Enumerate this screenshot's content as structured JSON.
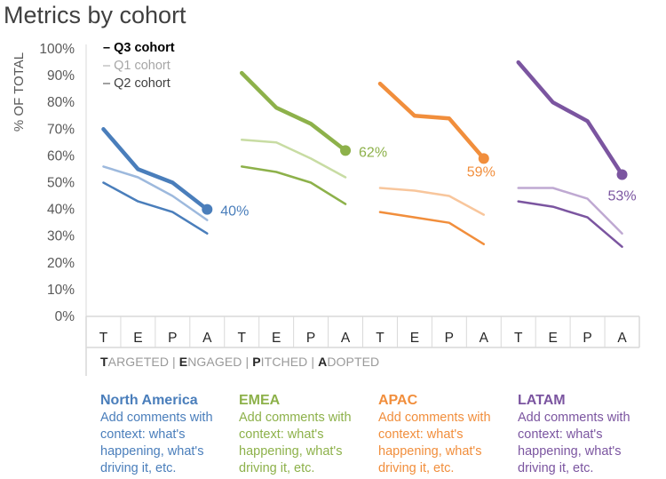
{
  "title": "Metrics by cohort",
  "legend": {
    "q3": "– Q3 cohort",
    "q1": "– Q1 cohort",
    "q2": "– Q2 cohort"
  },
  "key": {
    "t_first": "T",
    "t_rest": "ARGETED",
    "sep1": " | ",
    "e_first": "E",
    "e_rest": "NGAGED",
    "sep2": " | ",
    "p_first": "P",
    "p_rest": "ITCHED",
    "sep3": " | ",
    "a_first": "A",
    "a_rest": "DOPTED"
  },
  "regions": [
    {
      "name": "North America",
      "comment": "Add comments with context: what's happening, what's driving it, etc.",
      "color": "#4a7ebb"
    },
    {
      "name": "EMEA",
      "comment": "Add comments with context: what's happening, what's driving it, etc.",
      "color": "#8db14a"
    },
    {
      "name": "APAC",
      "comment": "Add comments with context: what's happening, what's driving it, etc.",
      "color": "#f18e3c"
    },
    {
      "name": "LATAM",
      "comment": "Add comments with context: what's happening, what's driving it, etc.",
      "color": "#7b55a0"
    }
  ],
  "chart_data": {
    "type": "line",
    "ylabel": "% OF TOTAL",
    "ylim": [
      0,
      100
    ],
    "yticks": [
      "0%",
      "10%",
      "20%",
      "30%",
      "40%",
      "50%",
      "60%",
      "70%",
      "80%",
      "90%",
      "100%"
    ],
    "categories": [
      "T",
      "E",
      "P",
      "A"
    ],
    "groups": [
      {
        "region": "North America",
        "color": "#4a7ebb",
        "light": "#9db9dd",
        "end_label": "40%",
        "series": [
          {
            "name": "Q3 cohort",
            "values": [
              70,
              55,
              50,
              40
            ]
          },
          {
            "name": "Q1 cohort",
            "values": [
              56,
              52,
              45,
              36
            ]
          },
          {
            "name": "Q2 cohort",
            "values": [
              50,
              43,
              39,
              31
            ]
          }
        ]
      },
      {
        "region": "EMEA",
        "color": "#8db14a",
        "light": "#c8dca3",
        "end_label": "62%",
        "series": [
          {
            "name": "Q3 cohort",
            "values": [
              91,
              78,
              72,
              62
            ]
          },
          {
            "name": "Q1 cohort",
            "values": [
              66,
              65,
              59,
              52
            ]
          },
          {
            "name": "Q2 cohort",
            "values": [
              56,
              54,
              50,
              42
            ]
          }
        ]
      },
      {
        "region": "APAC",
        "color": "#f18e3c",
        "light": "#f8c69c",
        "end_label": "59%",
        "series": [
          {
            "name": "Q3 cohort",
            "values": [
              87,
              75,
              74,
              59
            ]
          },
          {
            "name": "Q1 cohort",
            "values": [
              48,
              47,
              45,
              38
            ]
          },
          {
            "name": "Q2 cohort",
            "values": [
              39,
              37,
              35,
              27
            ]
          }
        ]
      },
      {
        "region": "LATAM",
        "color": "#7b55a0",
        "light": "#bfa9d2",
        "end_label": "53%",
        "series": [
          {
            "name": "Q3 cohort",
            "values": [
              95,
              80,
              73,
              53
            ]
          },
          {
            "name": "Q1 cohort",
            "values": [
              48,
              48,
              44,
              31
            ]
          },
          {
            "name": "Q2 cohort",
            "values": [
              43,
              41,
              37,
              26
            ]
          }
        ]
      }
    ]
  }
}
